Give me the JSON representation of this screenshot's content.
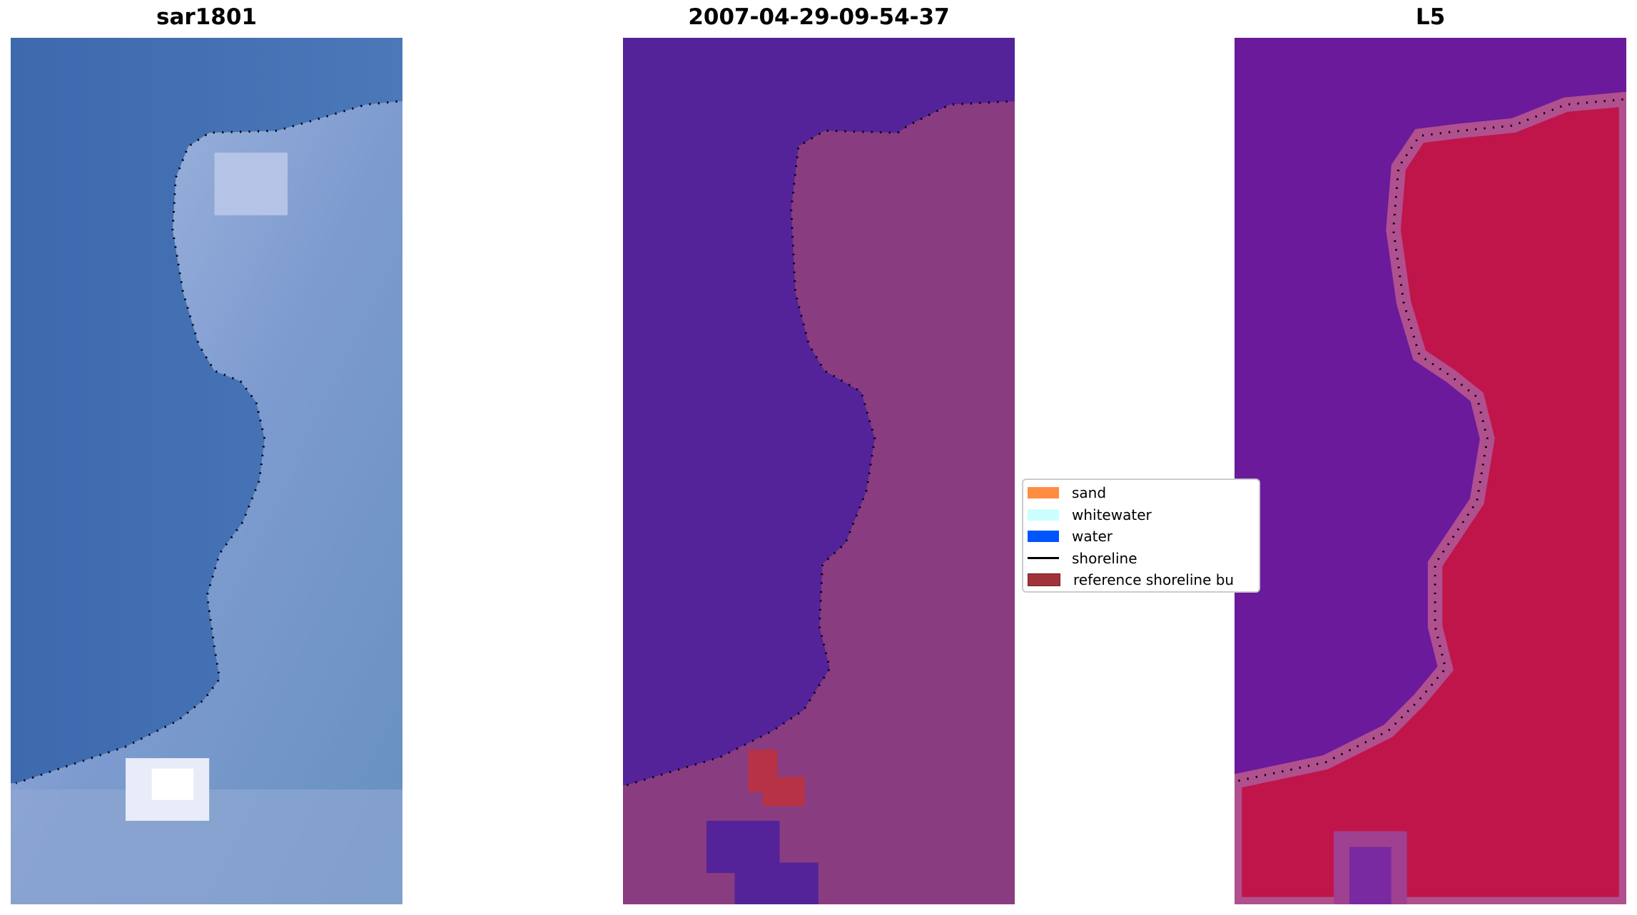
{
  "titles": [
    "sar1801",
    "2007-04-29-09-54-37",
    "L5"
  ],
  "legend": {
    "items": [
      {
        "label": "sand",
        "color": "#ff8c40",
        "kind": "patch"
      },
      {
        "label": "whitewater",
        "color": "#ccffff",
        "kind": "patch"
      },
      {
        "label": "water",
        "color": "#0055ff",
        "kind": "patch"
      },
      {
        "label": "shoreline",
        "color": "#000000",
        "kind": "line"
      },
      {
        "label": "reference shoreline bu",
        "color": "#a0333a",
        "kind": "patch"
      }
    ]
  },
  "colors": {
    "rgb_water": "#3f6cb0",
    "rgb_land": "#7f9ccc",
    "class_water": "#54239a",
    "class_land": "#8a3c80",
    "class_ref": "#b83245",
    "mndwi_water": "#6a1a9a",
    "mndwi_land": "#c0154a"
  }
}
